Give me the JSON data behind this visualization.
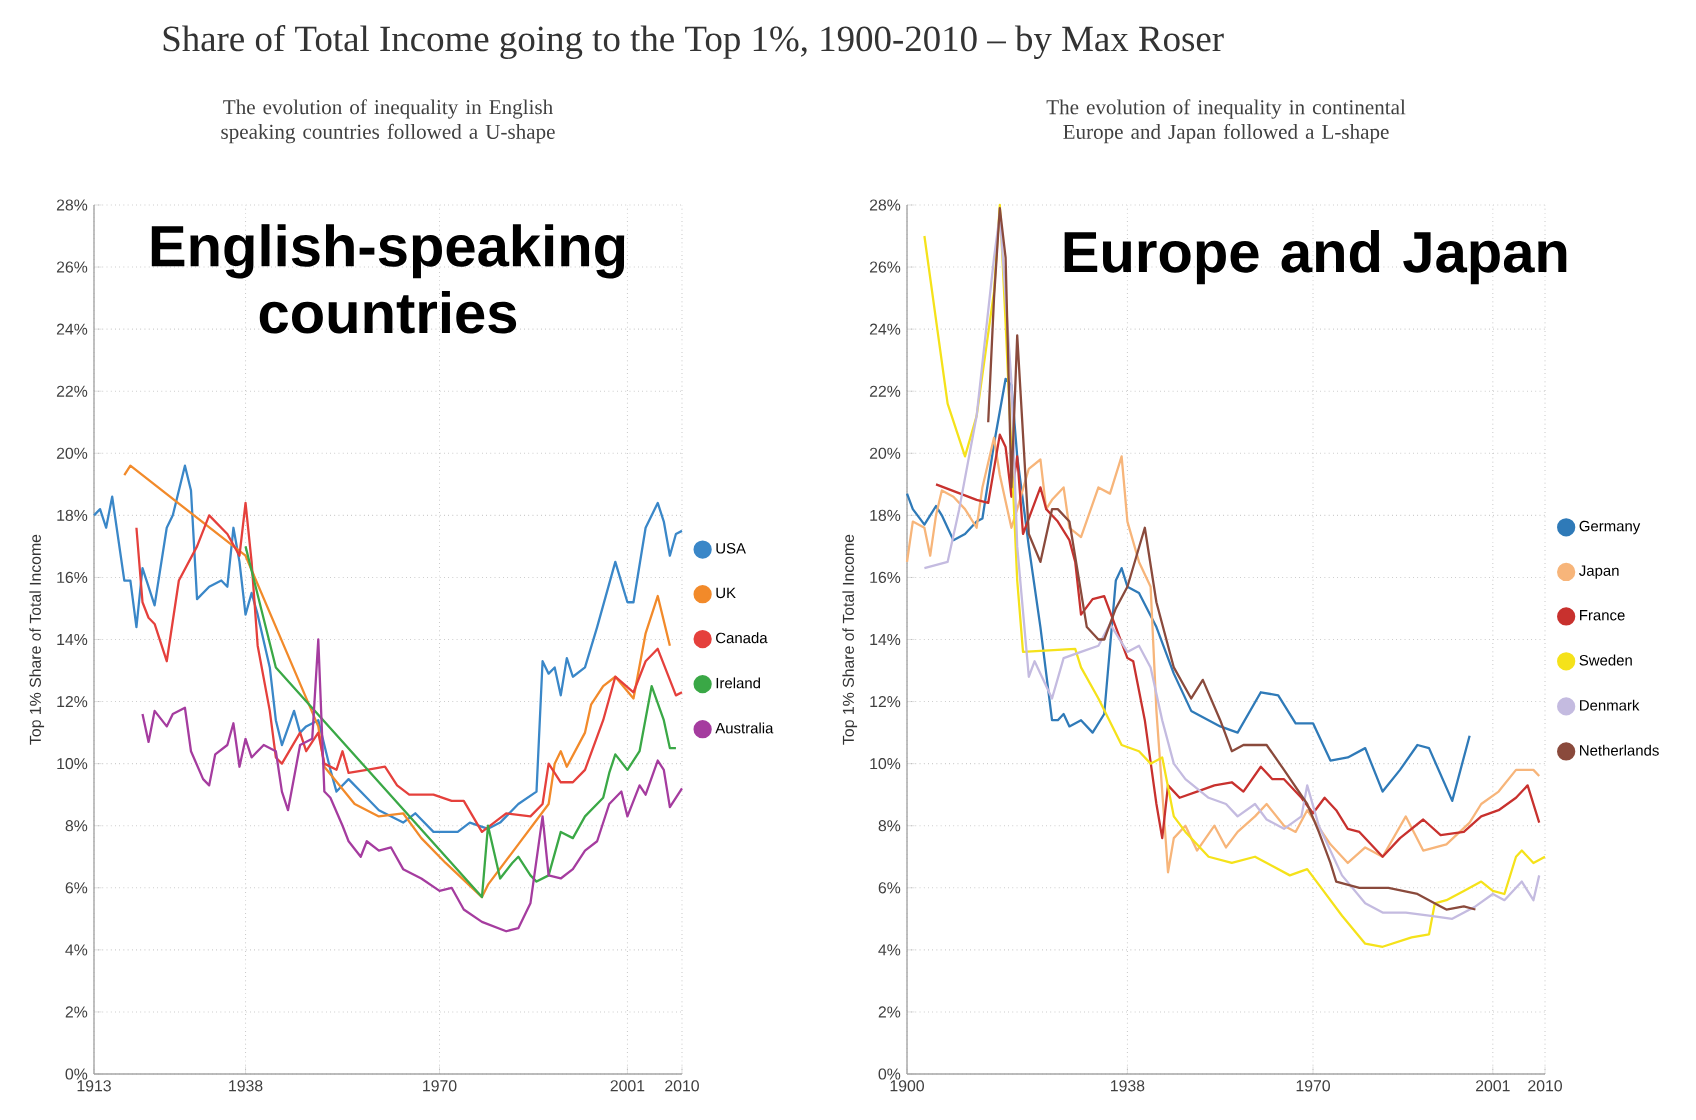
{
  "chart_data": [
    {
      "type": "line",
      "title": "Share of Total Income going to the Top 1%, 1900-2010 – by Max Roser",
      "subtitle": "The evolution of inequality in English speaking countries followed a U-shape",
      "ylabel": "Top 1% Share of Total Income",
      "annotations": [
        "English-speaking countries"
      ],
      "grid": true,
      "legend": "right",
      "xlim": [
        1913,
        2010
      ],
      "xticks": [
        1913,
        1938,
        1970,
        2001,
        2010
      ],
      "ylim": [
        0,
        28
      ],
      "yticks": [
        {
          "value": 0,
          "label": "0%"
        },
        {
          "value": 2,
          "label": "2%"
        },
        {
          "value": 4,
          "label": "4%"
        },
        {
          "value": 6,
          "label": "6%"
        },
        {
          "value": 8,
          "label": "8%"
        },
        {
          "value": 10,
          "label": "10%"
        },
        {
          "value": 12,
          "label": "12%"
        },
        {
          "value": 14,
          "label": "14%"
        },
        {
          "value": 16,
          "label": "16%"
        },
        {
          "value": 18,
          "label": "18%"
        },
        {
          "value": 20,
          "label": "20%"
        },
        {
          "value": 22,
          "label": "22%"
        },
        {
          "value": 24,
          "label": "24%"
        },
        {
          "value": 26,
          "label": "26%"
        },
        {
          "value": 28,
          "label": "28%"
        }
      ],
      "series": [
        {
          "name": "USA",
          "color": "#3a87c8",
          "x": [
            1913,
            1914,
            1915,
            1916,
            1918,
            1919,
            1920,
            1921,
            1923,
            1925,
            1926,
            1928,
            1929,
            1930,
            1932,
            1934,
            1935,
            1936,
            1937,
            1938,
            1939,
            1940,
            1942,
            1943,
            1944,
            1946,
            1947,
            1948,
            1950,
            1952,
            1953,
            1955,
            1958,
            1960,
            1964,
            1966,
            1969,
            1973,
            1975,
            1978,
            1980,
            1983,
            1986,
            1987,
            1988,
            1989,
            1990,
            1991,
            1992,
            1994,
            1996,
            1999,
            2001,
            2002,
            2004,
            2006,
            2007,
            2008,
            2009,
            2010
          ],
          "values": [
            18.0,
            18.2,
            17.6,
            18.6,
            15.9,
            15.9,
            14.4,
            16.3,
            15.1,
            17.6,
            18.0,
            19.6,
            18.8,
            15.3,
            15.7,
            15.9,
            15.7,
            17.6,
            16.5,
            14.8,
            15.5,
            14.8,
            13.1,
            11.4,
            10.6,
            11.7,
            11.0,
            11.2,
            11.4,
            9.8,
            9.1,
            9.5,
            8.9,
            8.5,
            8.1,
            8.4,
            7.8,
            7.8,
            8.1,
            7.9,
            8.1,
            8.7,
            9.1,
            13.3,
            12.9,
            13.1,
            12.2,
            13.4,
            12.8,
            13.1,
            14.4,
            16.5,
            15.2,
            15.2,
            17.6,
            18.4,
            17.8,
            16.7,
            17.4,
            17.5
          ]
        },
        {
          "name": "UK",
          "color": "#f28a2a",
          "x": [
            1918,
            1919,
            1938,
            1950,
            1951,
            1956,
            1960,
            1964,
            1967,
            1971,
            1977,
            1978,
            1983,
            1988,
            1989,
            1990,
            1991,
            1994,
            1995,
            1997,
            1999,
            2002,
            2004,
            2006,
            2008
          ],
          "values": [
            19.3,
            19.6,
            16.7,
            11.2,
            9.9,
            8.7,
            8.3,
            8.4,
            7.6,
            6.8,
            5.7,
            6.1,
            7.4,
            8.7,
            10.0,
            10.4,
            9.9,
            11.0,
            11.9,
            12.5,
            12.8,
            12.1,
            14.2,
            15.4,
            13.8
          ]
        },
        {
          "name": "Canada",
          "color": "#e5403c",
          "x": [
            1920,
            1921,
            1922,
            1923,
            1925,
            1927,
            1930,
            1932,
            1935,
            1937,
            1938,
            1939,
            1940,
            1942,
            1943,
            1944,
            1947,
            1948,
            1950,
            1951,
            1953,
            1954,
            1955,
            1958,
            1961,
            1963,
            1965,
            1969,
            1972,
            1974,
            1977,
            1979,
            1981,
            1985,
            1987,
            1988,
            1990,
            1992,
            1994,
            1997,
            1999,
            2002,
            2004,
            2006,
            2008,
            2009,
            2010
          ],
          "values": [
            17.6,
            15.2,
            14.7,
            14.5,
            13.3,
            15.9,
            17.0,
            18.0,
            17.4,
            16.7,
            18.4,
            16.5,
            13.8,
            11.7,
            10.2,
            10.0,
            11.0,
            10.4,
            11.0,
            10.0,
            9.8,
            10.4,
            9.7,
            9.8,
            9.9,
            9.3,
            9.0,
            9.0,
            8.8,
            8.8,
            7.8,
            8.1,
            8.4,
            8.3,
            8.7,
            10.0,
            9.4,
            9.4,
            9.8,
            11.4,
            12.8,
            12.3,
            13.3,
            13.7,
            12.7,
            12.2,
            12.3
          ]
        },
        {
          "name": "Ireland",
          "color": "#3aa846",
          "x": [
            1938,
            1943,
            1977,
            1978,
            1980,
            1982,
            1983,
            1985,
            1986,
            1988,
            1990,
            1992,
            1994,
            1997,
            1998,
            1999,
            2001,
            2003,
            2005,
            2007,
            2008,
            2009
          ],
          "values": [
            17.0,
            13.1,
            5.7,
            8.0,
            6.3,
            6.8,
            7.0,
            6.4,
            6.2,
            6.4,
            7.8,
            7.6,
            8.3,
            8.9,
            9.7,
            10.3,
            9.8,
            10.4,
            12.5,
            11.4,
            10.5,
            10.5
          ]
        },
        {
          "name": "Australia",
          "color": "#a53c9f",
          "x": [
            1921,
            1922,
            1923,
            1925,
            1926,
            1928,
            1929,
            1931,
            1932,
            1933,
            1935,
            1936,
            1937,
            1938,
            1939,
            1941,
            1943,
            1944,
            1945,
            1947,
            1949,
            1950,
            1951,
            1952,
            1954,
            1955,
            1957,
            1958,
            1960,
            1962,
            1964,
            1967,
            1970,
            1972,
            1974,
            1977,
            1981,
            1983,
            1985,
            1987,
            1988,
            1990,
            1992,
            1994,
            1996,
            1998,
            2000,
            2001,
            2003,
            2004,
            2006,
            2007,
            2008,
            2010
          ],
          "values": [
            11.6,
            10.7,
            11.7,
            11.2,
            11.6,
            11.8,
            10.4,
            9.5,
            9.3,
            10.3,
            10.6,
            11.3,
            9.9,
            10.8,
            10.2,
            10.6,
            10.4,
            9.1,
            8.5,
            10.6,
            10.8,
            14.0,
            9.1,
            8.9,
            8.0,
            7.5,
            7.0,
            7.5,
            7.2,
            7.3,
            6.6,
            6.3,
            5.9,
            6.0,
            5.3,
            4.9,
            4.6,
            4.7,
            5.5,
            8.3,
            6.4,
            6.3,
            6.6,
            7.2,
            7.5,
            8.7,
            9.1,
            8.3,
            9.3,
            9.0,
            10.1,
            9.8,
            8.6,
            9.2
          ]
        }
      ]
    },
    {
      "type": "line",
      "subtitle": "The evolution of inequality in continental Europe and Japan followed a L-shape",
      "ylabel": "Top 1% Share of Total Income",
      "annotations": [
        "Europe and Japan"
      ],
      "grid": true,
      "legend": "right",
      "xlim": [
        1900,
        2010
      ],
      "xticks": [
        1900,
        1938,
        1970,
        2001,
        2010
      ],
      "ylim": [
        0,
        28
      ],
      "yticks": [
        {
          "value": 0,
          "label": "0%"
        },
        {
          "value": 2,
          "label": "2%"
        },
        {
          "value": 4,
          "label": "4%"
        },
        {
          "value": 6,
          "label": "6%"
        },
        {
          "value": 8,
          "label": "8%"
        },
        {
          "value": 10,
          "label": "10%"
        },
        {
          "value": 12,
          "label": "12%"
        },
        {
          "value": 14,
          "label": "14%"
        },
        {
          "value": 16,
          "label": "16%"
        },
        {
          "value": 18,
          "label": "18%"
        },
        {
          "value": 20,
          "label": "20%"
        },
        {
          "value": 22,
          "label": "22%"
        },
        {
          "value": 24,
          "label": "24%"
        },
        {
          "value": 26,
          "label": "26%"
        },
        {
          "value": 28,
          "label": "28%"
        }
      ],
      "series": [
        {
          "name": "Germany",
          "color": "#2f7ab8",
          "x": [
            1900,
            1901,
            1903,
            1905,
            1906,
            1908,
            1910,
            1912,
            1913,
            1915,
            1917,
            1918,
            1919,
            1921,
            1923,
            1925,
            1926,
            1927,
            1928,
            1930,
            1932,
            1934,
            1936,
            1937,
            1938,
            1940,
            1943,
            1946,
            1949,
            1954,
            1957,
            1961,
            1964,
            1967,
            1970,
            1973,
            1976,
            1979,
            1982,
            1985,
            1988,
            1990,
            1994,
            1997
          ],
          "values": [
            18.7,
            18.2,
            17.7,
            18.3,
            18.0,
            17.2,
            17.4,
            17.8,
            17.9,
            20.3,
            22.4,
            22.2,
            19.9,
            17.0,
            14.4,
            11.4,
            11.4,
            11.6,
            11.2,
            11.4,
            11.0,
            11.6,
            15.9,
            16.3,
            15.7,
            15.5,
            14.4,
            12.9,
            11.7,
            11.2,
            11.0,
            12.3,
            12.2,
            11.3,
            11.3,
            10.1,
            10.2,
            10.5,
            9.1,
            9.8,
            10.6,
            10.5,
            8.8,
            10.9
          ]
        },
        {
          "name": "Japan",
          "color": "#f7b57a",
          "x": [
            1900,
            1901,
            1903,
            1904,
            1905,
            1906,
            1908,
            1910,
            1912,
            1913,
            1915,
            1916,
            1918,
            1919,
            1921,
            1923,
            1924,
            1925,
            1927,
            1928,
            1930,
            1933,
            1935,
            1937,
            1938,
            1940,
            1942,
            1943,
            1945,
            1946,
            1948,
            1950,
            1953,
            1955,
            1957,
            1960,
            1962,
            1965,
            1967,
            1969,
            1973,
            1976,
            1979,
            1982,
            1986,
            1989,
            1993,
            1997,
            1999,
            2002,
            2005,
            2008,
            2009
          ],
          "values": [
            16.5,
            17.8,
            17.6,
            16.7,
            18.0,
            18.8,
            18.6,
            18.2,
            17.6,
            18.9,
            20.5,
            19.3,
            17.6,
            18.2,
            19.5,
            19.8,
            18.2,
            18.5,
            18.9,
            17.6,
            17.3,
            18.9,
            18.7,
            19.9,
            17.8,
            16.5,
            15.7,
            11.7,
            6.5,
            7.6,
            8.0,
            7.2,
            8.0,
            7.3,
            7.8,
            8.3,
            8.7,
            8.0,
            7.8,
            8.5,
            7.4,
            6.8,
            7.3,
            7.0,
            8.3,
            7.2,
            7.4,
            8.1,
            8.7,
            9.1,
            9.8,
            9.8,
            9.6
          ]
        },
        {
          "name": "France",
          "color": "#c8312e",
          "x": [
            1905,
            1912,
            1914,
            1916,
            1917,
            1918,
            1919,
            1920,
            1923,
            1924,
            1926,
            1928,
            1929,
            1930,
            1932,
            1934,
            1936,
            1938,
            1939,
            1941,
            1943,
            1944,
            1945,
            1947,
            1950,
            1953,
            1956,
            1958,
            1961,
            1963,
            1965,
            1968,
            1970,
            1972,
            1974,
            1976,
            1978,
            1982,
            1985,
            1989,
            1992,
            1996,
            1999,
            2002,
            2005,
            2007,
            2009
          ],
          "values": [
            19.0,
            18.5,
            18.4,
            20.6,
            20.2,
            18.6,
            19.9,
            17.4,
            18.9,
            18.2,
            17.8,
            17.2,
            16.5,
            14.8,
            15.3,
            15.4,
            14.4,
            13.4,
            13.3,
            11.4,
            8.7,
            7.6,
            9.3,
            8.9,
            9.1,
            9.3,
            9.4,
            9.1,
            9.9,
            9.5,
            9.5,
            8.9,
            8.4,
            8.9,
            8.5,
            7.9,
            7.8,
            7.0,
            7.6,
            8.2,
            7.7,
            7.8,
            8.3,
            8.5,
            8.9,
            9.3,
            8.1
          ]
        },
        {
          "name": "Sweden",
          "color": "#f5e21a",
          "x": [
            1903,
            1907,
            1910,
            1912,
            1915,
            1916,
            1917,
            1919,
            1920,
            1929,
            1930,
            1933,
            1937,
            1940,
            1942,
            1944,
            1946,
            1948,
            1952,
            1956,
            1960,
            1963,
            1966,
            1969,
            1971,
            1975,
            1979,
            1982,
            1987,
            1990,
            1991,
            1993,
            1996,
            1999,
            2001,
            2003,
            2005,
            2006,
            2008,
            2010
          ],
          "values": [
            27.0,
            21.6,
            19.9,
            21.2,
            25.2,
            28.0,
            24.2,
            15.9,
            13.6,
            13.7,
            13.1,
            12.1,
            10.6,
            10.4,
            10.0,
            10.2,
            8.3,
            7.8,
            7.0,
            6.8,
            7.0,
            6.7,
            6.4,
            6.6,
            6.1,
            5.1,
            4.2,
            4.1,
            4.4,
            4.5,
            5.5,
            5.6,
            5.9,
            6.2,
            5.9,
            5.8,
            7.0,
            7.2,
            6.8,
            7.0
          ]
        },
        {
          "name": "Denmark",
          "color": "#c4bbe0",
          "x": [
            1903,
            1907,
            1909,
            1912,
            1915,
            1916,
            1918,
            1919,
            1921,
            1922,
            1925,
            1927,
            1930,
            1933,
            1935,
            1938,
            1940,
            1942,
            1944,
            1946,
            1948,
            1952,
            1955,
            1957,
            1960,
            1962,
            1965,
            1968,
            1969,
            1971,
            1975,
            1979,
            1982,
            1986,
            1990,
            1994,
            1998,
            2001,
            2003,
            2006,
            2008,
            2009
          ],
          "values": [
            16.3,
            16.5,
            18.2,
            21.2,
            26.3,
            27.7,
            22.3,
            17.0,
            12.8,
            13.3,
            12.1,
            13.4,
            13.6,
            13.8,
            14.5,
            13.6,
            13.8,
            13.1,
            11.4,
            10.0,
            9.5,
            8.9,
            8.7,
            8.3,
            8.7,
            8.2,
            7.9,
            8.3,
            9.3,
            8.0,
            6.4,
            5.5,
            5.2,
            5.2,
            5.1,
            5.0,
            5.4,
            5.8,
            5.6,
            6.2,
            5.6,
            6.4
          ]
        },
        {
          "name": "Netherlands",
          "color": "#8a4a3c",
          "x": [
            1914,
            1915,
            1916,
            1917,
            1918,
            1919,
            1921,
            1923,
            1925,
            1926,
            1928,
            1931,
            1933,
            1934,
            1936,
            1938,
            1941,
            1943,
            1946,
            1949,
            1951,
            1954,
            1956,
            1958,
            1962,
            1965,
            1969,
            1971,
            1973,
            1974,
            1978,
            1983,
            1988,
            1992,
            1993,
            1996,
            1998
          ],
          "values": [
            21.0,
            25.0,
            27.9,
            26.3,
            18.9,
            23.8,
            17.4,
            16.5,
            18.2,
            18.2,
            17.8,
            14.4,
            14.0,
            14.0,
            15.0,
            15.7,
            17.6,
            15.2,
            13.1,
            12.1,
            12.7,
            11.4,
            10.4,
            10.6,
            10.6,
            9.8,
            8.7,
            7.8,
            6.8,
            6.2,
            6.0,
            6.0,
            5.8,
            5.4,
            5.3,
            5.4,
            5.3
          ]
        }
      ]
    }
  ]
}
